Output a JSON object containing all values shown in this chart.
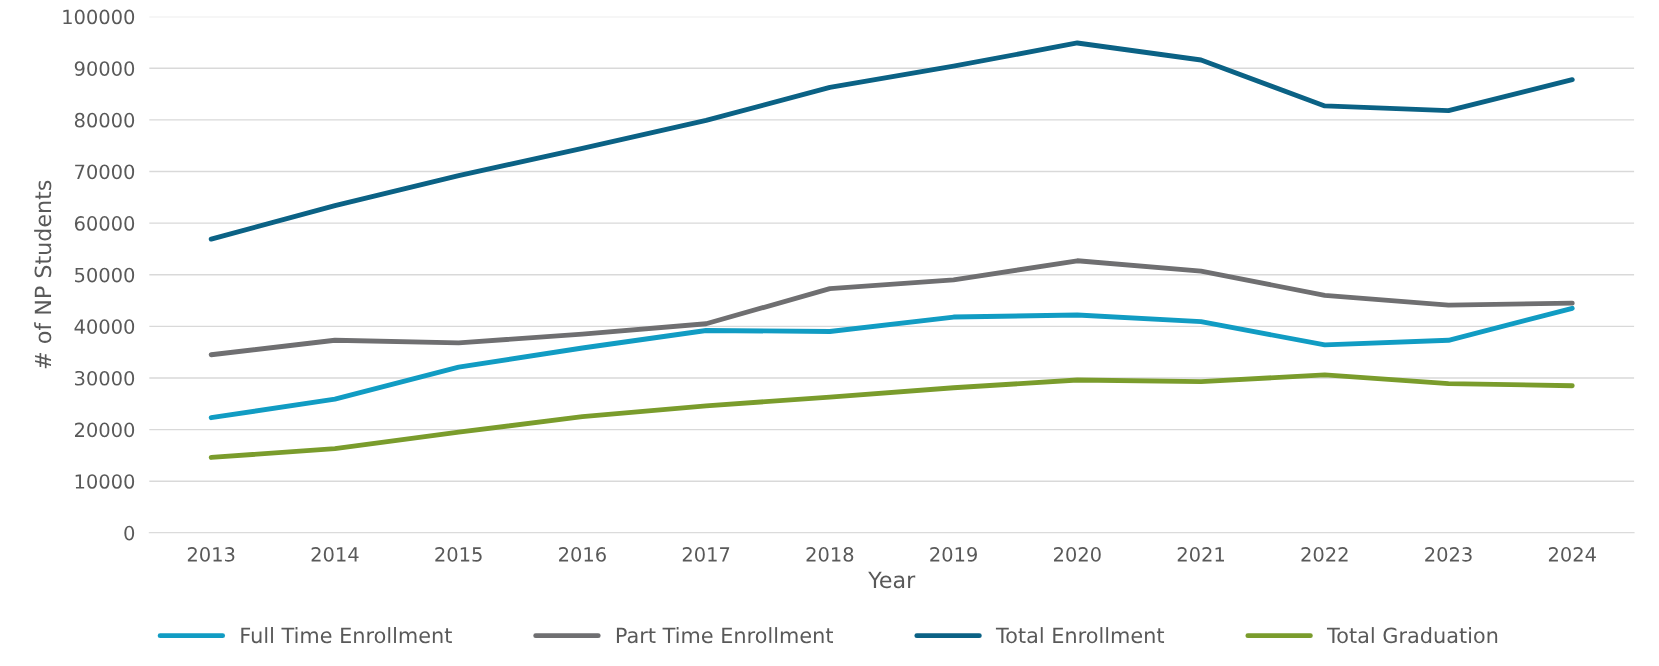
{
  "chart_data": {
    "type": "line",
    "xlabel": "Year",
    "ylabel": "# of NP Students",
    "categories": [
      "2013",
      "2014",
      "2015",
      "2016",
      "2017",
      "2018",
      "2019",
      "2020",
      "2021",
      "2022",
      "2023",
      "2024"
    ],
    "series": [
      {
        "name": "Full Time Enrollment",
        "color": "#119cc3",
        "values": [
          22300,
          25900,
          32100,
          35800,
          39200,
          39000,
          41800,
          42200,
          40900,
          36400,
          37300,
          43500
        ]
      },
      {
        "name": "Part Time Enrollment",
        "color": "#6f6f71",
        "values": [
          34500,
          37300,
          36800,
          38500,
          40500,
          47300,
          49000,
          52700,
          50700,
          46000,
          44100,
          44500
        ]
      },
      {
        "name": "Total Enrollment",
        "color": "#0b6285",
        "values": [
          56900,
          63400,
          69200,
          74500,
          79900,
          86300,
          90400,
          94900,
          91600,
          82700,
          81800,
          87800
        ]
      },
      {
        "name": "Total Graduation",
        "color": "#7a9c2c",
        "values": [
          14600,
          16300,
          19500,
          22500,
          24600,
          26300,
          28100,
          29600,
          29300,
          30600,
          28900,
          28500
        ]
      }
    ],
    "ylim": [
      0,
      100000
    ],
    "yticks": [
      0,
      10000,
      20000,
      30000,
      40000,
      50000,
      60000,
      70000,
      80000,
      90000,
      100000
    ],
    "grid": "y",
    "legend": "bottom",
    "marker": "none",
    "line_style": "solid"
  }
}
